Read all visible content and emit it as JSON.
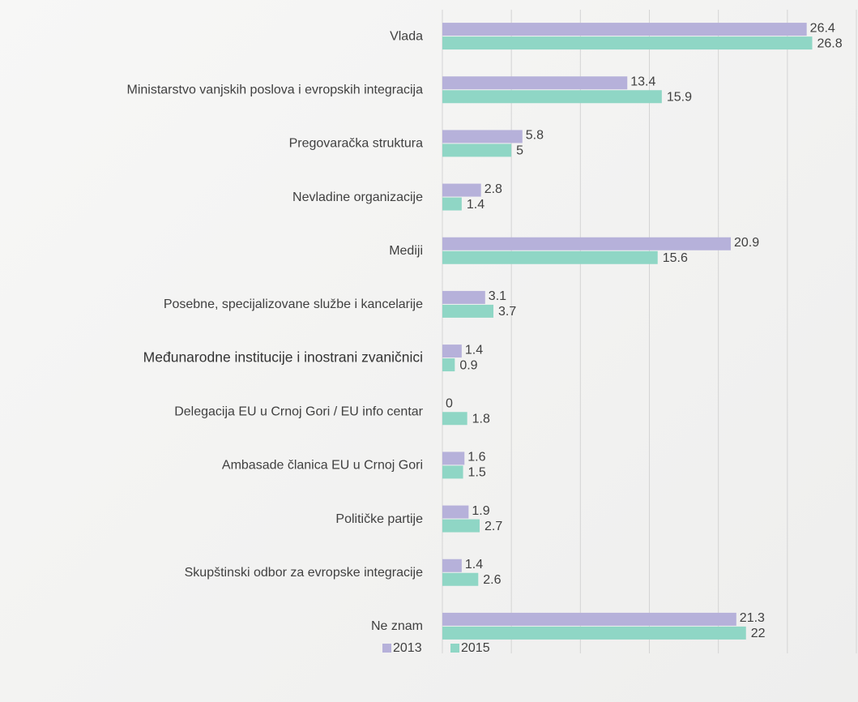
{
  "chart_data": {
    "type": "barh",
    "categories": [
      "Vlada",
      "Ministarstvo vanjskih poslova i evropskih integracija",
      "Pregovaračka struktura",
      "Nevladine organizacije",
      "Mediji",
      "Posebne, specijalizovane službe i kancelarije",
      "Međunarodne institucije i inostrani zvaničnici",
      "Delegacija EU u Crnoj Gori / EU info centar",
      "Ambasade članica EU u Crnoj Gori",
      "Političke partije",
      "Skupštinski odbor za evropske integracije",
      "Ne znam"
    ],
    "series": [
      {
        "name": "2013",
        "color": "#b6b1da",
        "values": [
          26.4,
          13.4,
          5.8,
          2.8,
          20.9,
          3.1,
          1.4,
          0,
          1.6,
          1.9,
          1.4,
          21.3
        ]
      },
      {
        "name": "2015",
        "color": "#8fd6c5",
        "values": [
          26.8,
          15.9,
          5,
          1.4,
          15.6,
          3.7,
          0.9,
          1.8,
          1.5,
          2.7,
          2.6,
          22
        ]
      }
    ],
    "xlim": [
      0,
      30
    ],
    "xticks": [
      0,
      5,
      10,
      15,
      20,
      25,
      30
    ],
    "grid": true,
    "legend": "bottom"
  }
}
